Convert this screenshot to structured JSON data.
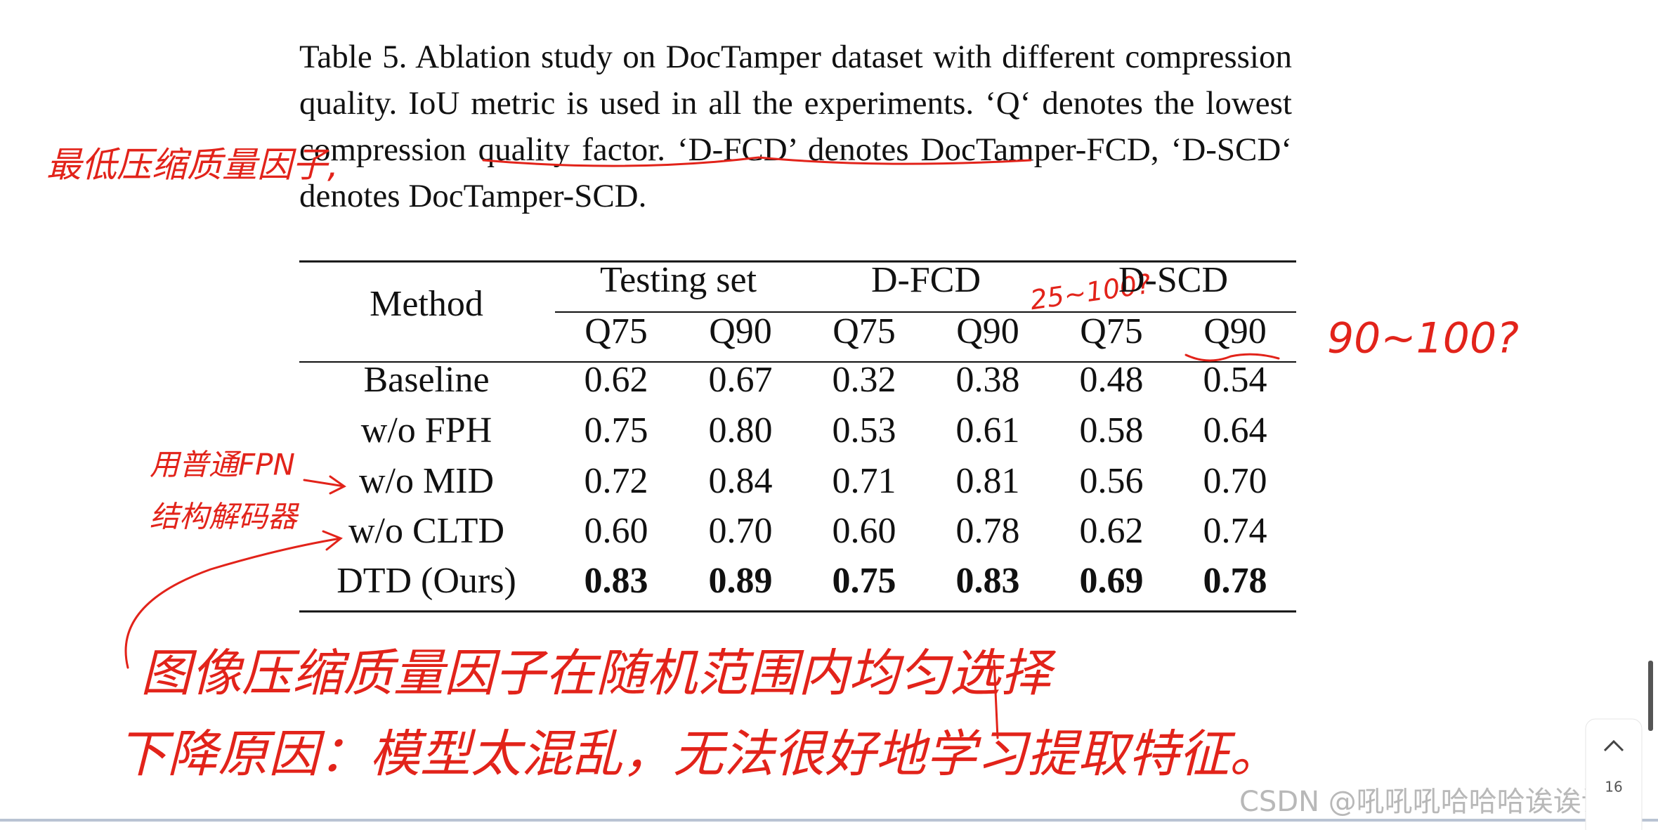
{
  "caption": "Table 5. Ablation study on DocTamper dataset with different compression quality. IoU metric is used in all the experiments. ‘Q‘ denotes the lowest compression quality factor. ‘D-FCD’ denotes DocTamper-FCD, ‘D-SCD‘ denotes DocTamper-SCD.",
  "table": {
    "method_header": "Method",
    "groups": [
      "Testing set",
      "D-FCD",
      "D-SCD"
    ],
    "subheaders": [
      "Q75",
      "Q90",
      "Q75",
      "Q90",
      "Q75",
      "Q90"
    ],
    "rows": [
      [
        "Baseline",
        "0.62",
        "0.67",
        "0.32",
        "0.38",
        "0.48",
        "0.54"
      ],
      [
        "w/o FPH",
        "0.75",
        "0.80",
        "0.53",
        "0.61",
        "0.58",
        "0.64"
      ],
      [
        "w/o MID",
        "0.72",
        "0.84",
        "0.71",
        "0.81",
        "0.56",
        "0.70"
      ],
      [
        "w/o CLTD",
        "0.60",
        "0.70",
        "0.60",
        "0.78",
        "0.62",
        "0.74"
      ],
      [
        "DTD (Ours)",
        "0.83",
        "0.89",
        "0.75",
        "0.83",
        "0.69",
        "0.78"
      ]
    ]
  },
  "annotations": {
    "lowest_factor": "最低压缩质量因子,",
    "dscd_q75": "25~100?",
    "q90": "90~100?",
    "mid_note": [
      "用普通FPN",
      "结构解码器"
    ],
    "bottom_notes": [
      "图像压缩质量因子在随机范围内均匀选择",
      "下降原因：模型太混乱，无法很好地学习提取特征。"
    ]
  },
  "watermark": "CSDN @吼吼吼哈哈哈诶诶诶",
  "page_number": "16"
}
